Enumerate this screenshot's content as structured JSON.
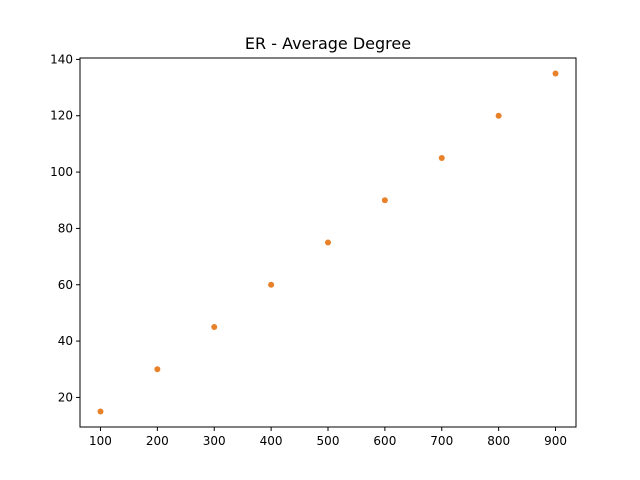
{
  "chart_data": {
    "type": "scatter",
    "title": "ER - Average Degree",
    "xlabel": "",
    "ylabel": "",
    "xlim": [
      64,
      936
    ],
    "ylim": [
      9.5,
      140.5
    ],
    "xticks": [
      "100",
      "200",
      "300",
      "400",
      "500",
      "600",
      "700",
      "800",
      "900"
    ],
    "yticks": [
      "20",
      "40",
      "60",
      "80",
      "100",
      "120",
      "140"
    ],
    "grid": false,
    "color": "#e8822a",
    "series": [
      {
        "x": [
          100,
          200,
          300,
          400,
          500,
          600,
          700,
          800,
          900
        ],
        "y": [
          15,
          30,
          45,
          60,
          75,
          90,
          105,
          120,
          135
        ]
      }
    ]
  }
}
